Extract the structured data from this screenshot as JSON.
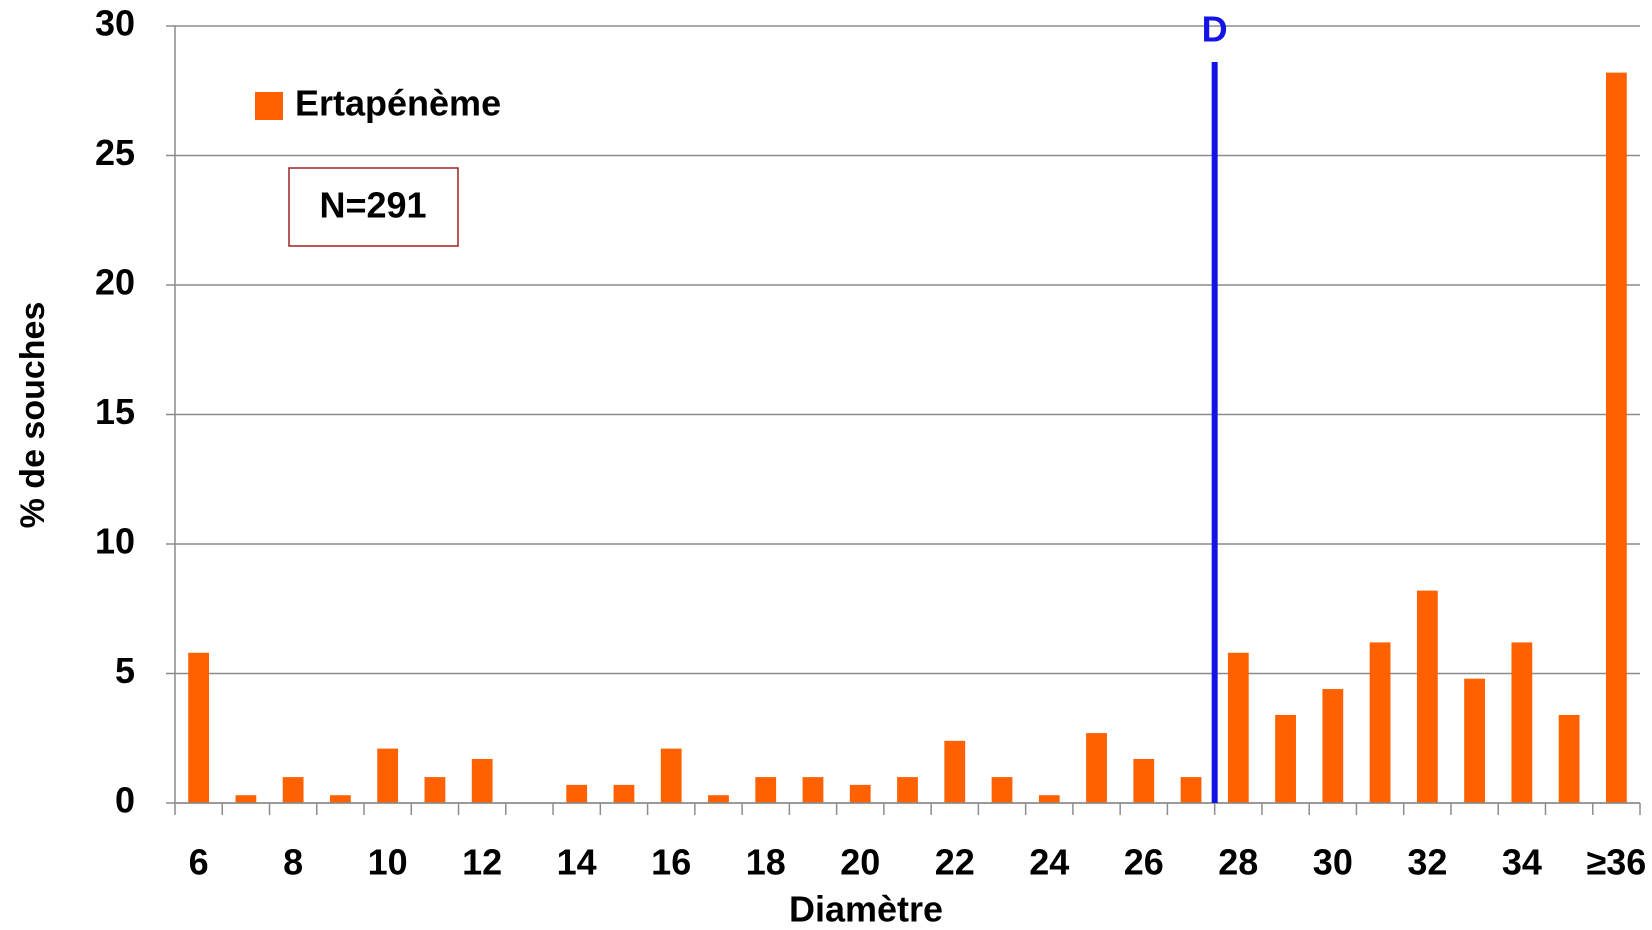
{
  "chart_data": {
    "type": "bar",
    "x_label": "Diamètre",
    "y_label": "% de souches",
    "categories": [
      "6",
      null,
      "8",
      null,
      "10",
      null,
      "12",
      null,
      "14",
      null,
      "16",
      null,
      "18",
      null,
      "20",
      null,
      "22",
      null,
      "24",
      null,
      "26",
      null,
      "28",
      null,
      "30",
      null,
      "32",
      null,
      "34",
      null,
      "≥36"
    ],
    "series": [
      {
        "name": "Ertapénème",
        "color": "#ff6000",
        "values": [
          5.8,
          0.3,
          1.0,
          0.3,
          2.1,
          1.0,
          1.7,
          0,
          0.7,
          0.7,
          2.1,
          0.3,
          1.0,
          1.0,
          0.7,
          1.0,
          2.4,
          1.0,
          0.3,
          2.7,
          1.7,
          1.0,
          5.8,
          3.4,
          4.4,
          6.2,
          8.2,
          4.8,
          6.2,
          3.4,
          28.2
        ]
      }
    ],
    "ylim": [
      0,
      30
    ],
    "yticks": [
      0,
      5,
      10,
      15,
      20,
      25,
      30
    ],
    "grid": true,
    "legend": "upper left",
    "annotation": "N=291",
    "reference_line": {
      "label": "D",
      "x": 27.5,
      "color": "#1414e6"
    }
  }
}
